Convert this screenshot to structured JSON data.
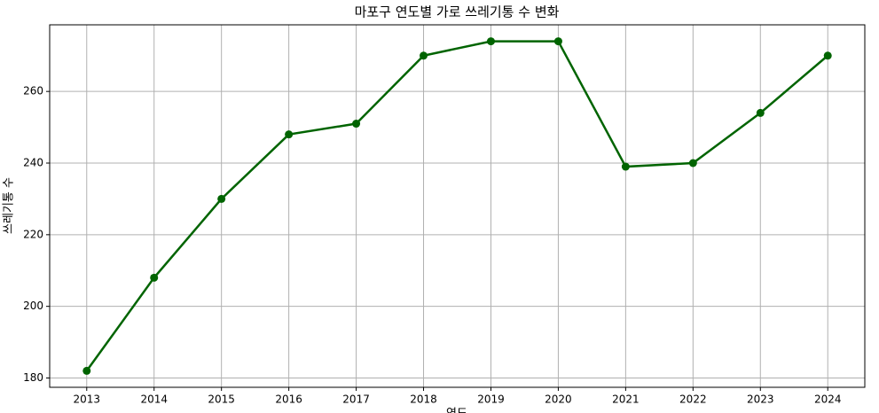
{
  "chart_data": {
    "type": "line",
    "title": "마포구 연도별 가로 쓰레기통 수 변화",
    "x_label": "연도",
    "y_label": "쓰레기통 수",
    "x": [
      2013,
      2014,
      2015,
      2016,
      2017,
      2018,
      2019,
      2020,
      2021,
      2022,
      2023,
      2024
    ],
    "series": [
      {
        "name": "쓰레기통 수",
        "color": "#006400",
        "values": [
          182,
          208,
          230,
          248,
          251,
          270,
          274,
          274,
          239,
          240,
          254,
          270
        ]
      }
    ],
    "xlim": [
      2012.45,
      2024.55
    ],
    "xticks": [
      2013,
      2014,
      2015,
      2016,
      2017,
      2018,
      2019,
      2020,
      2021,
      2022,
      2023,
      2024
    ],
    "ylim": [
      177.4,
      278.6
    ],
    "yticks": [
      180,
      200,
      220,
      240,
      260
    ],
    "grid": true
  }
}
